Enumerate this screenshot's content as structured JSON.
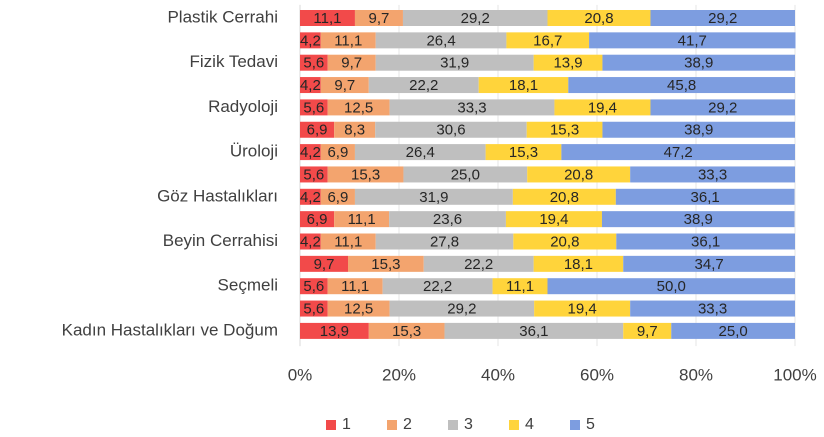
{
  "chart_data": {
    "type": "stacked_bar_horizontal",
    "categories": [
      "Plastik Cerrahi",
      null,
      "Fizik Tedavi",
      null,
      "Radyoloji",
      null,
      "Üroloji",
      null,
      "Göz Hastalıkları",
      null,
      "Beyin Cerrahisi",
      null,
      "Seçmeli",
      null,
      "Kadın Hastalıkları ve Doğum"
    ],
    "series": [
      {
        "name": "1",
        "color": "#f24a4a",
        "values": [
          11.1,
          4.2,
          5.6,
          4.2,
          5.6,
          6.9,
          4.2,
          5.6,
          4.2,
          6.9,
          4.2,
          9.7,
          5.6,
          5.6,
          13.9
        ],
        "value_labels": [
          "11,1",
          "4,2",
          "5,6",
          "4,2",
          "5,6",
          "6,9",
          "4,2",
          "5,6",
          "4,2",
          "6,9",
          "4,2",
          "9,7",
          "5,6",
          "5,6",
          "13,9"
        ]
      },
      {
        "name": "2",
        "color": "#f3a46e",
        "values": [
          9.7,
          11.1,
          9.7,
          9.7,
          12.5,
          8.3,
          6.9,
          15.3,
          6.9,
          11.1,
          11.1,
          15.3,
          11.1,
          12.5,
          15.3
        ],
        "value_labels": [
          "9,7",
          "11,1",
          "9,7",
          "9,7",
          "12,5",
          "8,3",
          "6,9",
          "15,3",
          "6,9",
          "11,1",
          "11,1",
          "15,3",
          "11,1",
          "12,5",
          "15,3"
        ]
      },
      {
        "name": "3",
        "color": "#bfbfbf",
        "values": [
          29.2,
          26.4,
          31.9,
          22.2,
          33.3,
          30.6,
          26.4,
          25.0,
          31.9,
          23.6,
          27.8,
          22.2,
          22.2,
          29.2,
          36.1
        ],
        "value_labels": [
          "29,2",
          "26,4",
          "31,9",
          "22,2",
          "33,3",
          "30,6",
          "26,4",
          "25,0",
          "31,9",
          "23,6",
          "27,8",
          "22,2",
          "22,2",
          "29,2",
          "36,1"
        ]
      },
      {
        "name": "4",
        "color": "#ffd43b",
        "values": [
          20.8,
          16.7,
          13.9,
          18.1,
          19.4,
          15.3,
          15.3,
          20.8,
          20.8,
          19.4,
          20.8,
          18.1,
          11.1,
          19.4,
          9.7
        ],
        "value_labels": [
          "20,8",
          "16,7",
          "13,9",
          "18,1",
          "19,4",
          "15,3",
          "15,3",
          "20,8",
          "20,8",
          "19,4",
          "20,8",
          "18,1",
          "11,1",
          "19,4",
          "9,7"
        ]
      },
      {
        "name": "5",
        "color": "#7d9de0",
        "values": [
          29.2,
          41.7,
          38.9,
          45.8,
          29.2,
          38.9,
          47.2,
          33.3,
          36.1,
          38.9,
          36.1,
          34.7,
          50.0,
          33.3,
          25.0
        ],
        "value_labels": [
          "29,2",
          "41,7",
          "38,9",
          "45,8",
          "29,2",
          "38,9",
          "47,2",
          "33,3",
          "36,1",
          "38,9",
          "36,1",
          "34,7",
          "50,0",
          "33,3",
          "25,0"
        ]
      }
    ],
    "xlim": [
      0,
      100
    ],
    "xticks": [
      {
        "value": 0,
        "label": "0%"
      },
      {
        "value": 20,
        "label": "20%"
      },
      {
        "value": 40,
        "label": "40%"
      },
      {
        "value": 60,
        "label": "60%"
      },
      {
        "value": 80,
        "label": "80%"
      },
      {
        "value": 100,
        "label": "100%"
      }
    ],
    "grid": true,
    "legend": "bottom"
  }
}
